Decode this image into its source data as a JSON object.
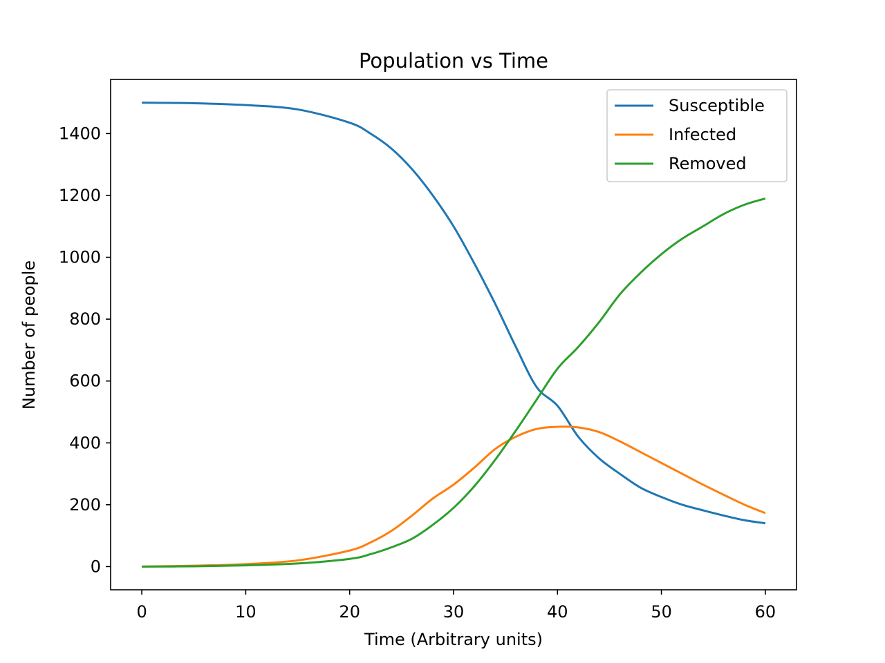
{
  "chart_data": {
    "type": "line",
    "title": "Population vs Time",
    "xlabel": "Time (Arbitrary units)",
    "ylabel": "Number of people",
    "xlim": [
      -3,
      63
    ],
    "ylim": [
      -75,
      1575
    ],
    "xticks": [
      0,
      10,
      20,
      30,
      40,
      50,
      60
    ],
    "yticks": [
      0,
      200,
      400,
      600,
      800,
      1000,
      1200,
      1400
    ],
    "grid": false,
    "legend_position": "top-right",
    "x": [
      0,
      5,
      10,
      15,
      20,
      22,
      24,
      26,
      28,
      30,
      32,
      34,
      36,
      38,
      40,
      42,
      44,
      46,
      48,
      50,
      52,
      54,
      56,
      58,
      60
    ],
    "series": [
      {
        "name": "Susceptible",
        "color": "#1f77b4",
        "values": [
          1500,
          1498,
          1492,
          1478,
          1435,
          1400,
          1352,
          1285,
          1200,
          1100,
          980,
          850,
          710,
          580,
          520,
          420,
          350,
          300,
          255,
          225,
          200,
          182,
          165,
          150,
          140
        ]
      },
      {
        "name": "Infected",
        "color": "#ff7f0e",
        "values": [
          0,
          3,
          8,
          20,
          52,
          78,
          115,
          165,
          220,
          265,
          320,
          380,
          420,
          445,
          452,
          450,
          435,
          405,
          370,
          335,
          300,
          265,
          232,
          200,
          173
        ]
      },
      {
        "name": "Removed",
        "color": "#2ca02c",
        "values": [
          0,
          1,
          4,
          10,
          25,
          40,
          62,
          90,
          135,
          190,
          260,
          345,
          440,
          540,
          640,
          710,
          790,
          880,
          950,
          1010,
          1060,
          1100,
          1140,
          1170,
          1190
        ]
      }
    ]
  }
}
